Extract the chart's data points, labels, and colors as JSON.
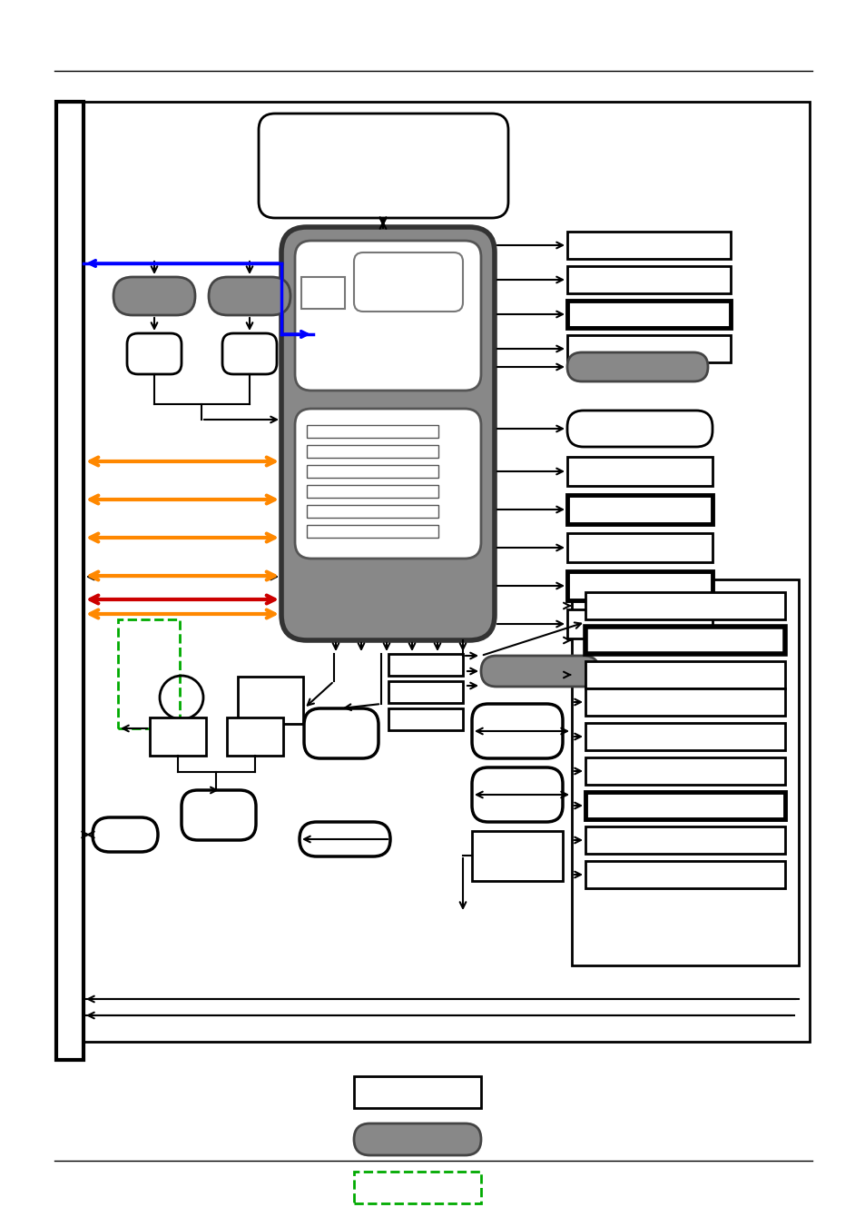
{
  "fig_width": 9.54,
  "fig_height": 13.51,
  "dpi": 100,
  "bg_color": "#ffffff",
  "gray_chip": "#888888",
  "dark_border": "#333333",
  "inner_gray": "#aaaaaa",
  "green_dashed": "#00aa00",
  "blue_arrow": "#0000ff",
  "orange_arrow": "#ff8800",
  "red_arrow": "#cc0000",
  "pill_gray": "#888888"
}
